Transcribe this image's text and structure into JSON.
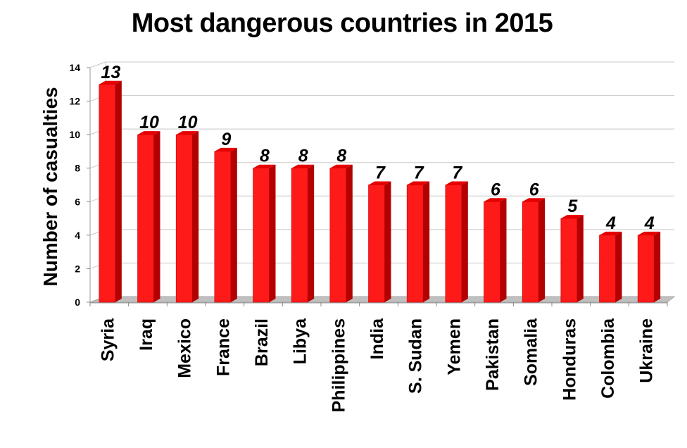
{
  "chart_data": {
    "type": "bar",
    "title": "Most dangerous countries in 2015",
    "xlabel": "",
    "ylabel": "Number of casualties",
    "categories": [
      "Syria",
      "Iraq",
      "Mexico",
      "France",
      "Brazil",
      "Libya",
      "Philippines",
      "India",
      "S. Sudan",
      "Yemen",
      "Pakistan",
      "Somalia",
      "Honduras",
      "Colombia",
      "Ukraine"
    ],
    "values": [
      13,
      10,
      10,
      9,
      8,
      8,
      8,
      7,
      7,
      7,
      6,
      6,
      5,
      4,
      4
    ],
    "ylim": [
      0,
      14
    ],
    "yticks": [
      0,
      2,
      4,
      6,
      8,
      10,
      12,
      14
    ],
    "grid": true,
    "data_labels": true,
    "style": "3d-bar",
    "colors": {
      "bar_front": "#ff1a1a",
      "bar_side": "#b30000",
      "bar_top": "#e60000",
      "grid": "#c8c8c8",
      "floor": "#c0c0c0"
    }
  }
}
